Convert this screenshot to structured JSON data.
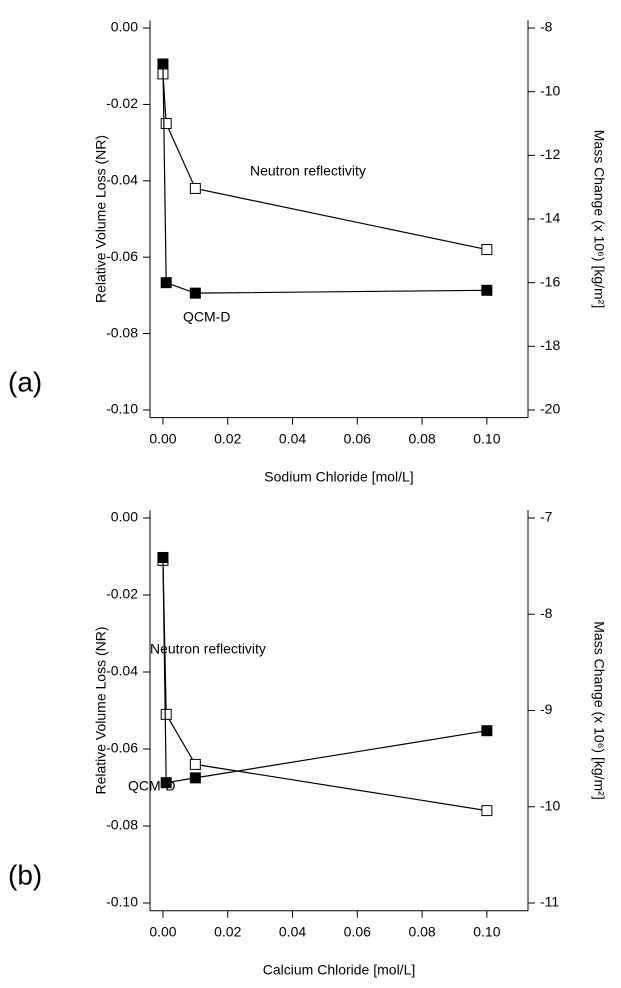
{
  "chart_data": [
    {
      "type": "line",
      "panel_label": "(a)",
      "x_label": "Sodium Chloride [mol/L]",
      "y_label": "Relative Volume Loss (NR)",
      "y2_label": "Mass Change (x 10⁶) [kg/m²]",
      "xlim": [
        -0.004,
        0.1127
      ],
      "xticks": [
        {
          "value": 0,
          "label": "0.00"
        },
        {
          "value": 0.02,
          "label": "0.02"
        },
        {
          "value": 0.04,
          "label": "0.04"
        },
        {
          "value": 0.06,
          "label": "0.06"
        },
        {
          "value": 0.08,
          "label": "0.08"
        },
        {
          "value": 0.1,
          "label": "0.10"
        }
      ],
      "ylim": [
        -0.102,
        0.002
      ],
      "yticks": [
        {
          "value": 0,
          "label": "0.00"
        },
        {
          "value": -0.02,
          "label": "-0.02"
        },
        {
          "value": -0.04,
          "label": "-0.04"
        },
        {
          "value": -0.06,
          "label": "-0.06"
        },
        {
          "value": -0.08,
          "label": "-0.08"
        },
        {
          "value": -0.1,
          "label": "-0.10"
        }
      ],
      "y2lim": [
        -20.24,
        -7.76
      ],
      "y2ticks": [
        -8,
        -10,
        -12,
        -14,
        -16,
        -18,
        -20
      ],
      "series": [
        {
          "name": "Neutron reflectivity",
          "marker": "open",
          "color": "#000000",
          "x": [
            0,
            0.001,
            0.01,
            0.1
          ],
          "values": [
            -0.012,
            -0.025,
            -0.042,
            -0.058
          ]
        },
        {
          "name": "QCM-D",
          "marker": "filled",
          "color": "#000000",
          "axis": "y2",
          "x": [
            0,
            0.001,
            0.01,
            0.1
          ],
          "values": [
            -9.13,
            -16.0,
            -16.33,
            -16.24
          ]
        }
      ]
    },
    {
      "type": "line",
      "panel_label": "(b)",
      "x_label": "Calcium Chloride [mol/L]",
      "y_label": "Relative Volume Loss (NR)",
      "y2_label": "Mass Change (x 10⁶) [kg/m²]",
      "xlim": [
        -0.004,
        0.1127
      ],
      "xticks": [
        {
          "value": 0,
          "label": "0.00"
        },
        {
          "value": 0.02,
          "label": "0.02"
        },
        {
          "value": 0.04,
          "label": "0.04"
        },
        {
          "value": 0.06,
          "label": "0.06"
        },
        {
          "value": 0.08,
          "label": "0.08"
        },
        {
          "value": 0.1,
          "label": "0.10"
        }
      ],
      "ylim": [
        -0.102,
        0.002
      ],
      "yticks": [
        {
          "value": 0,
          "label": "0.00"
        },
        {
          "value": -0.02,
          "label": "-0.02"
        },
        {
          "value": -0.04,
          "label": "-0.04"
        },
        {
          "value": -0.06,
          "label": "-0.06"
        },
        {
          "value": -0.08,
          "label": "-0.08"
        },
        {
          "value": -0.1,
          "label": "-0.10"
        }
      ],
      "y2lim": [
        -11.08,
        -6.92
      ],
      "y2ticks": [
        -7,
        -8,
        -9,
        -10,
        -11
      ],
      "series": [
        {
          "name": "Neutron reflectivity",
          "marker": "open",
          "color": "#000000",
          "x": [
            0,
            0.001,
            0.01,
            0.1
          ],
          "values": [
            -0.011,
            -0.051,
            -0.064,
            -0.076
          ]
        },
        {
          "name": "QCM-D",
          "marker": "filled",
          "color": "#000000",
          "axis": "y2",
          "x": [
            0,
            0.001,
            0.01,
            0.1
          ],
          "values": [
            -7.41,
            -9.75,
            -9.7,
            -9.21
          ]
        }
      ]
    }
  ]
}
